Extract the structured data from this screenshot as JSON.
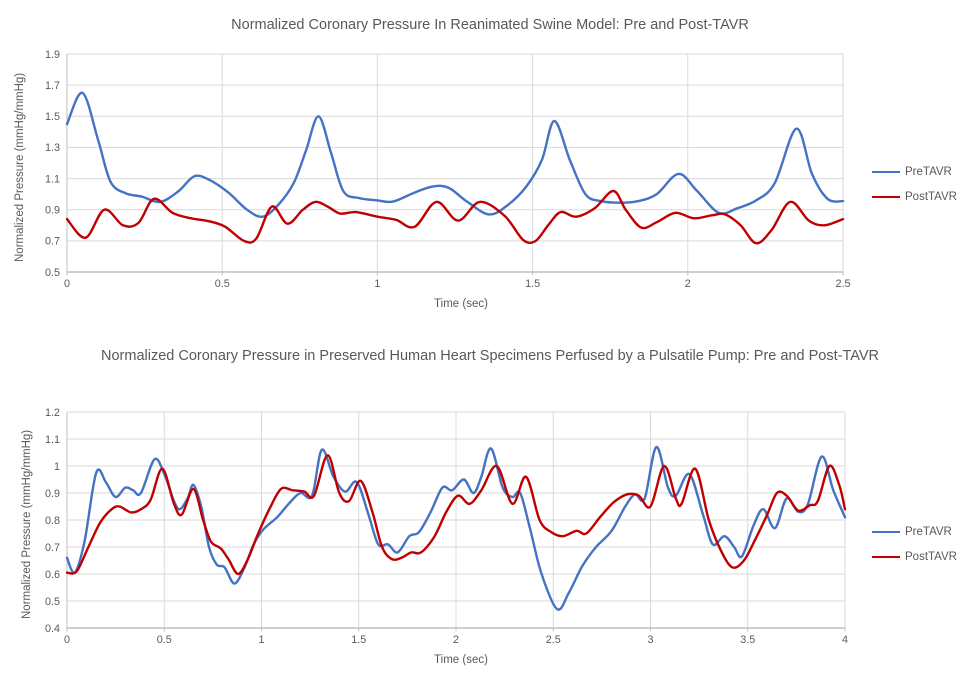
{
  "colors": {
    "pre_tavr_blue": "#4472C4",
    "post_tavr_red": "#C00000",
    "gridline": "#D9D9D9",
    "axis_line": "#BFBFBF",
    "text_gray": "#595959"
  },
  "chart_data": [
    {
      "type": "line",
      "title": "Normalized Coronary Pressure In Reanimated Swine Model: Pre and Post-TAVR",
      "xlabel": "Time (sec)",
      "ylabel": "Normalized Pressure (mmHg/mmHg)",
      "xlim": [
        0,
        2.5
      ],
      "ylim": [
        0.5,
        1.9
      ],
      "xtick_labels": [
        "0",
        "0.5",
        "1",
        "1.5",
        "2",
        "2.5"
      ],
      "xticks": [
        0,
        0.5,
        1,
        1.5,
        2,
        2.5
      ],
      "ytick_labels": [
        "1.9",
        "1.7",
        "1.5",
        "1.3",
        "1.1",
        "0.9",
        "0.7",
        "0.5"
      ],
      "yticks": [
        1.9,
        1.7,
        1.5,
        1.3,
        1.1,
        0.9,
        0.7,
        0.5
      ],
      "grid": true,
      "legend_position": "right",
      "series": [
        {
          "name": "PreTAVR",
          "color": "#4472C4",
          "points": [
            [
              0,
              1.45
            ],
            [
              0.05,
              1.65
            ],
            [
              0.1,
              1.35
            ],
            [
              0.14,
              1.08
            ],
            [
              0.19,
              1.005
            ],
            [
              0.24,
              0.985
            ],
            [
              0.3,
              0.95
            ],
            [
              0.36,
              1.02
            ],
            [
              0.41,
              1.115
            ],
            [
              0.46,
              1.09
            ],
            [
              0.52,
              1.01
            ],
            [
              0.58,
              0.9
            ],
            [
              0.63,
              0.855
            ],
            [
              0.68,
              0.93
            ],
            [
              0.73,
              1.07
            ],
            [
              0.77,
              1.28
            ],
            [
              0.81,
              1.5
            ],
            [
              0.85,
              1.27
            ],
            [
              0.89,
              1.02
            ],
            [
              0.94,
              0.975
            ],
            [
              1.0,
              0.96
            ],
            [
              1.05,
              0.952
            ],
            [
              1.12,
              1.01
            ],
            [
              1.18,
              1.05
            ],
            [
              1.23,
              1.04
            ],
            [
              1.29,
              0.95
            ],
            [
              1.36,
              0.87
            ],
            [
              1.42,
              0.93
            ],
            [
              1.48,
              1.05
            ],
            [
              1.53,
              1.22
            ],
            [
              1.57,
              1.47
            ],
            [
              1.62,
              1.22
            ],
            [
              1.67,
              1.0
            ],
            [
              1.72,
              0.955
            ],
            [
              1.78,
              0.945
            ],
            [
              1.84,
              0.955
            ],
            [
              1.9,
              1.0
            ],
            [
              1.97,
              1.13
            ],
            [
              2.03,
              1.02
            ],
            [
              2.1,
              0.88
            ],
            [
              2.16,
              0.91
            ],
            [
              2.22,
              0.96
            ],
            [
              2.28,
              1.07
            ],
            [
              2.35,
              1.42
            ],
            [
              2.4,
              1.13
            ],
            [
              2.45,
              0.97
            ],
            [
              2.5,
              0.955
            ]
          ]
        },
        {
          "name": "PostTAVR",
          "color": "#C00000",
          "points": [
            [
              0,
              0.84
            ],
            [
              0.06,
              0.72
            ],
            [
              0.12,
              0.9
            ],
            [
              0.18,
              0.8
            ],
            [
              0.23,
              0.815
            ],
            [
              0.28,
              0.97
            ],
            [
              0.34,
              0.88
            ],
            [
              0.4,
              0.845
            ],
            [
              0.46,
              0.825
            ],
            [
              0.51,
              0.79
            ],
            [
              0.57,
              0.7
            ],
            [
              0.61,
              0.715
            ],
            [
              0.66,
              0.92
            ],
            [
              0.71,
              0.81
            ],
            [
              0.76,
              0.9
            ],
            [
              0.8,
              0.95
            ],
            [
              0.84,
              0.92
            ],
            [
              0.88,
              0.875
            ],
            [
              0.93,
              0.885
            ],
            [
              1.0,
              0.855
            ],
            [
              1.06,
              0.835
            ],
            [
              1.12,
              0.79
            ],
            [
              1.19,
              0.95
            ],
            [
              1.26,
              0.83
            ],
            [
              1.33,
              0.95
            ],
            [
              1.41,
              0.86
            ],
            [
              1.47,
              0.705
            ],
            [
              1.51,
              0.7
            ],
            [
              1.55,
              0.8
            ],
            [
              1.59,
              0.885
            ],
            [
              1.64,
              0.855
            ],
            [
              1.7,
              0.91
            ],
            [
              1.76,
              1.02
            ],
            [
              1.8,
              0.9
            ],
            [
              1.85,
              0.785
            ],
            [
              1.9,
              0.82
            ],
            [
              1.96,
              0.88
            ],
            [
              2.02,
              0.845
            ],
            [
              2.08,
              0.865
            ],
            [
              2.12,
              0.87
            ],
            [
              2.17,
              0.8
            ],
            [
              2.22,
              0.685
            ],
            [
              2.27,
              0.77
            ],
            [
              2.33,
              0.95
            ],
            [
              2.39,
              0.83
            ],
            [
              2.44,
              0.8
            ],
            [
              2.5,
              0.84
            ]
          ]
        }
      ]
    },
    {
      "type": "line",
      "title": "Normalized Coronary Pressure in Preserved Human Heart Specimens Perfused by a Pulsatile Pump: Pre and Post-TAVR",
      "xlabel": "Time (sec)",
      "ylabel": "Normalized Pressure (mmHg/mmHg)",
      "xlim": [
        0,
        4
      ],
      "ylim": [
        0.4,
        1.2
      ],
      "xtick_labels": [
        "0",
        "0.5",
        "1",
        "1.5",
        "2",
        "2.5",
        "3",
        "3.5",
        "4"
      ],
      "xticks": [
        0,
        0.5,
        1,
        1.5,
        2,
        2.5,
        3,
        3.5,
        4
      ],
      "ytick_labels": [
        "1.2",
        "1.1",
        "1",
        "0.9",
        "0.8",
        "0.7",
        "0.6",
        "0.5",
        "0.4"
      ],
      "yticks": [
        1.2,
        1.1,
        1.0,
        0.9,
        0.8,
        0.7,
        0.6,
        0.5,
        0.4
      ],
      "grid": true,
      "legend_position": "right",
      "series": [
        {
          "name": "PreTAVR",
          "color": "#4472C4",
          "points": [
            [
              0,
              0.66
            ],
            [
              0.04,
              0.605
            ],
            [
              0.09,
              0.72
            ],
            [
              0.15,
              0.975
            ],
            [
              0.2,
              0.94
            ],
            [
              0.25,
              0.885
            ],
            [
              0.3,
              0.92
            ],
            [
              0.34,
              0.91
            ],
            [
              0.38,
              0.9
            ],
            [
              0.45,
              1.025
            ],
            [
              0.5,
              0.97
            ],
            [
              0.55,
              0.87
            ],
            [
              0.58,
              0.84
            ],
            [
              0.62,
              0.88
            ],
            [
              0.65,
              0.93
            ],
            [
              0.69,
              0.85
            ],
            [
              0.73,
              0.7
            ],
            [
              0.77,
              0.635
            ],
            [
              0.81,
              0.625
            ],
            [
              0.86,
              0.565
            ],
            [
              0.91,
              0.62
            ],
            [
              0.96,
              0.71
            ],
            [
              1.01,
              0.765
            ],
            [
              1.08,
              0.81
            ],
            [
              1.14,
              0.86
            ],
            [
              1.2,
              0.9
            ],
            [
              1.26,
              0.89
            ],
            [
              1.31,
              1.06
            ],
            [
              1.37,
              0.96
            ],
            [
              1.43,
              0.905
            ],
            [
              1.49,
              0.94
            ],
            [
              1.55,
              0.82
            ],
            [
              1.6,
              0.71
            ],
            [
              1.65,
              0.71
            ],
            [
              1.7,
              0.68
            ],
            [
              1.76,
              0.74
            ],
            [
              1.81,
              0.755
            ],
            [
              1.87,
              0.83
            ],
            [
              1.93,
              0.92
            ],
            [
              1.98,
              0.91
            ],
            [
              2.04,
              0.95
            ],
            [
              2.09,
              0.9
            ],
            [
              2.13,
              0.96
            ],
            [
              2.18,
              1.065
            ],
            [
              2.24,
              0.92
            ],
            [
              2.29,
              0.885
            ],
            [
              2.33,
              0.9
            ],
            [
              2.38,
              0.77
            ],
            [
              2.44,
              0.6
            ],
            [
              2.52,
              0.47
            ],
            [
              2.58,
              0.53
            ],
            [
              2.65,
              0.63
            ],
            [
              2.72,
              0.7
            ],
            [
              2.8,
              0.76
            ],
            [
              2.87,
              0.85
            ],
            [
              2.92,
              0.895
            ],
            [
              2.97,
              0.88
            ],
            [
              3.03,
              1.07
            ],
            [
              3.09,
              0.92
            ],
            [
              3.13,
              0.89
            ],
            [
              3.2,
              0.97
            ],
            [
              3.27,
              0.82
            ],
            [
              3.32,
              0.71
            ],
            [
              3.38,
              0.74
            ],
            [
              3.43,
              0.7
            ],
            [
              3.47,
              0.665
            ],
            [
              3.53,
              0.78
            ],
            [
              3.58,
              0.84
            ],
            [
              3.64,
              0.77
            ],
            [
              3.7,
              0.88
            ],
            [
              3.76,
              0.83
            ],
            [
              3.81,
              0.86
            ],
            [
              3.88,
              1.035
            ],
            [
              3.94,
              0.91
            ],
            [
              4.0,
              0.81
            ]
          ]
        },
        {
          "name": "PostTAVR",
          "color": "#C00000",
          "points": [
            [
              0,
              0.605
            ],
            [
              0.05,
              0.61
            ],
            [
              0.11,
              0.7
            ],
            [
              0.17,
              0.79
            ],
            [
              0.23,
              0.84
            ],
            [
              0.27,
              0.85
            ],
            [
              0.33,
              0.828
            ],
            [
              0.38,
              0.84
            ],
            [
              0.43,
              0.875
            ],
            [
              0.49,
              0.99
            ],
            [
              0.55,
              0.86
            ],
            [
              0.59,
              0.82
            ],
            [
              0.65,
              0.915
            ],
            [
              0.7,
              0.8
            ],
            [
              0.74,
              0.72
            ],
            [
              0.79,
              0.695
            ],
            [
              0.83,
              0.655
            ],
            [
              0.88,
              0.6
            ],
            [
              0.93,
              0.655
            ],
            [
              0.98,
              0.745
            ],
            [
              1.04,
              0.84
            ],
            [
              1.1,
              0.915
            ],
            [
              1.16,
              0.91
            ],
            [
              1.22,
              0.905
            ],
            [
              1.27,
              0.89
            ],
            [
              1.34,
              1.04
            ],
            [
              1.4,
              0.9
            ],
            [
              1.45,
              0.87
            ],
            [
              1.51,
              0.945
            ],
            [
              1.57,
              0.83
            ],
            [
              1.62,
              0.7
            ],
            [
              1.67,
              0.655
            ],
            [
              1.72,
              0.66
            ],
            [
              1.77,
              0.68
            ],
            [
              1.82,
              0.68
            ],
            [
              1.89,
              0.74
            ],
            [
              1.95,
              0.83
            ],
            [
              2.01,
              0.89
            ],
            [
              2.07,
              0.86
            ],
            [
              2.13,
              0.91
            ],
            [
              2.21,
              1.0
            ],
            [
              2.29,
              0.86
            ],
            [
              2.36,
              0.96
            ],
            [
              2.43,
              0.8
            ],
            [
              2.49,
              0.755
            ],
            [
              2.55,
              0.74
            ],
            [
              2.62,
              0.76
            ],
            [
              2.67,
              0.75
            ],
            [
              2.74,
              0.81
            ],
            [
              2.81,
              0.865
            ],
            [
              2.88,
              0.895
            ],
            [
              2.94,
              0.89
            ],
            [
              3.0,
              0.85
            ],
            [
              3.07,
              1.0
            ],
            [
              3.13,
              0.88
            ],
            [
              3.16,
              0.86
            ],
            [
              3.23,
              0.99
            ],
            [
              3.3,
              0.8
            ],
            [
              3.36,
              0.69
            ],
            [
              3.42,
              0.625
            ],
            [
              3.48,
              0.65
            ],
            [
              3.54,
              0.73
            ],
            [
              3.6,
              0.82
            ],
            [
              3.65,
              0.9
            ],
            [
              3.7,
              0.89
            ],
            [
              3.76,
              0.835
            ],
            [
              3.82,
              0.855
            ],
            [
              3.86,
              0.87
            ],
            [
              3.92,
              1.0
            ],
            [
              3.97,
              0.93
            ],
            [
              4.0,
              0.84
            ]
          ]
        }
      ]
    }
  ]
}
